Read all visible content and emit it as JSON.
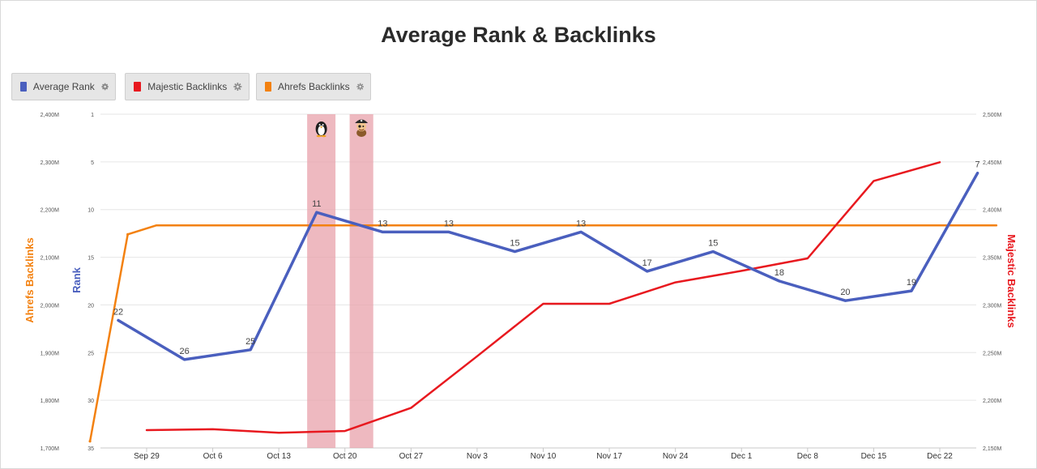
{
  "chart_data": {
    "type": "line",
    "title": "Average Rank & Backlinks",
    "legend": {
      "placement": "top-left",
      "items": [
        {
          "name": "Average Rank",
          "color": "#4a5fbe"
        },
        {
          "name": "Majestic Backlinks",
          "color": "#e8191f"
        },
        {
          "name": "Ahrefs Backlinks",
          "color": "#f38110"
        }
      ]
    },
    "x_ticks": [
      "Sep 29",
      "Oct 6",
      "Oct 13",
      "Oct 20",
      "Oct 27",
      "Nov 3",
      "Nov 10",
      "Nov 17",
      "Nov 24",
      "Dec 1",
      "Dec 8",
      "Dec 15",
      "Dec 22"
    ],
    "axes": {
      "rank": {
        "title": "Rank",
        "color": "#4a5fbe",
        "reversed": true,
        "range": [
          1,
          35
        ],
        "tick_labels": [
          "1",
          "5",
          "10",
          "15",
          "20",
          "25",
          "30",
          "35"
        ]
      },
      "ahrefs": {
        "title": "Ahrefs Backlinks",
        "color": "#f38110",
        "range": [
          1650000,
          2400000
        ],
        "tick_labels": [
          "2,400M",
          "2,300M",
          "2,200M",
          "2,100M",
          "2,000M",
          "1,900M",
          "1,800M",
          "1,700M"
        ]
      },
      "majestic": {
        "title": "Majestic Backlinks",
        "color": "#e8191f",
        "range": [
          2125000,
          2500000
        ],
        "tick_labels": [
          "2,500M",
          "2,450M",
          "2,400M",
          "2,350M",
          "2,300M",
          "2,250M",
          "2,200M",
          "2,150M"
        ]
      }
    },
    "grid": true,
    "bands": [
      {
        "from": "Oct 16",
        "to": "Oct 19",
        "color": "#e8a1ab",
        "icon": "penguin-icon"
      },
      {
        "from": "Oct 20.5",
        "to": "Oct 23",
        "color": "#e8a1ab",
        "icon": "pirate-icon"
      }
    ],
    "series": [
      {
        "name": "Average Rank",
        "axis": "rank",
        "color": "#4a5fbe",
        "points": [
          {
            "x": "Sep 26",
            "y": 22,
            "label": "22"
          },
          {
            "x": "Oct 3",
            "y": 26,
            "label": "26"
          },
          {
            "x": "Oct 10",
            "y": 25,
            "label": "25"
          },
          {
            "x": "Oct 17",
            "y": 11,
            "label": "11"
          },
          {
            "x": "Oct 24",
            "y": 13,
            "label": "13"
          },
          {
            "x": "Oct 31",
            "y": 13,
            "label": "13"
          },
          {
            "x": "Nov 7",
            "y": 15,
            "label": "15"
          },
          {
            "x": "Nov 14",
            "y": 13,
            "label": "13"
          },
          {
            "x": "Nov 21",
            "y": 17,
            "label": "17"
          },
          {
            "x": "Nov 28",
            "y": 15,
            "label": "15"
          },
          {
            "x": "Dec 5",
            "y": 18,
            "label": "18"
          },
          {
            "x": "Dec 12",
            "y": 20,
            "label": "20"
          },
          {
            "x": "Dec 19",
            "y": 19,
            "label": "19"
          },
          {
            "x": "Dec 26",
            "y": 7,
            "label": "7"
          }
        ]
      },
      {
        "name": "Majestic Backlinks",
        "axis": "majestic",
        "color": "#e8191f",
        "points": [
          {
            "x": "Sep 29",
            "y": 2145000
          },
          {
            "x": "Oct 6",
            "y": 2146000
          },
          {
            "x": "Oct 13",
            "y": 2142000
          },
          {
            "x": "Oct 20",
            "y": 2144000
          },
          {
            "x": "Oct 27",
            "y": 2170000
          },
          {
            "x": "Nov 3",
            "y": 2228000
          },
          {
            "x": "Nov 10",
            "y": 2287000
          },
          {
            "x": "Nov 17",
            "y": 2287000
          },
          {
            "x": "Nov 24",
            "y": 2311000
          },
          {
            "x": "Dec 1",
            "y": 2324000
          },
          {
            "x": "Dec 8",
            "y": 2338000
          },
          {
            "x": "Dec 15",
            "y": 2425000
          },
          {
            "x": "Dec 22",
            "y": 2446000
          }
        ]
      },
      {
        "name": "Ahrefs Backlinks",
        "axis": "ahrefs",
        "color": "#f38110",
        "points": [
          {
            "x": "Sep 23",
            "y": 1665000
          },
          {
            "x": "Sep 27",
            "y": 2130000
          },
          {
            "x": "Sep 30",
            "y": 2150000
          },
          {
            "x": "Oct 6",
            "y": 2150000
          },
          {
            "x": "Oct 13",
            "y": 2150000
          },
          {
            "x": "Oct 20",
            "y": 2150000
          },
          {
            "x": "Oct 27",
            "y": 2150000
          },
          {
            "x": "Nov 3",
            "y": 2150000
          },
          {
            "x": "Nov 10",
            "y": 2150000
          },
          {
            "x": "Nov 17",
            "y": 2150000
          },
          {
            "x": "Nov 24",
            "y": 2150000
          },
          {
            "x": "Dec 1",
            "y": 2150000
          },
          {
            "x": "Dec 8",
            "y": 2150000
          },
          {
            "x": "Dec 15",
            "y": 2150000
          },
          {
            "x": "Dec 22",
            "y": 2150000
          },
          {
            "x": "Dec 28",
            "y": 2150000
          }
        ]
      }
    ]
  }
}
